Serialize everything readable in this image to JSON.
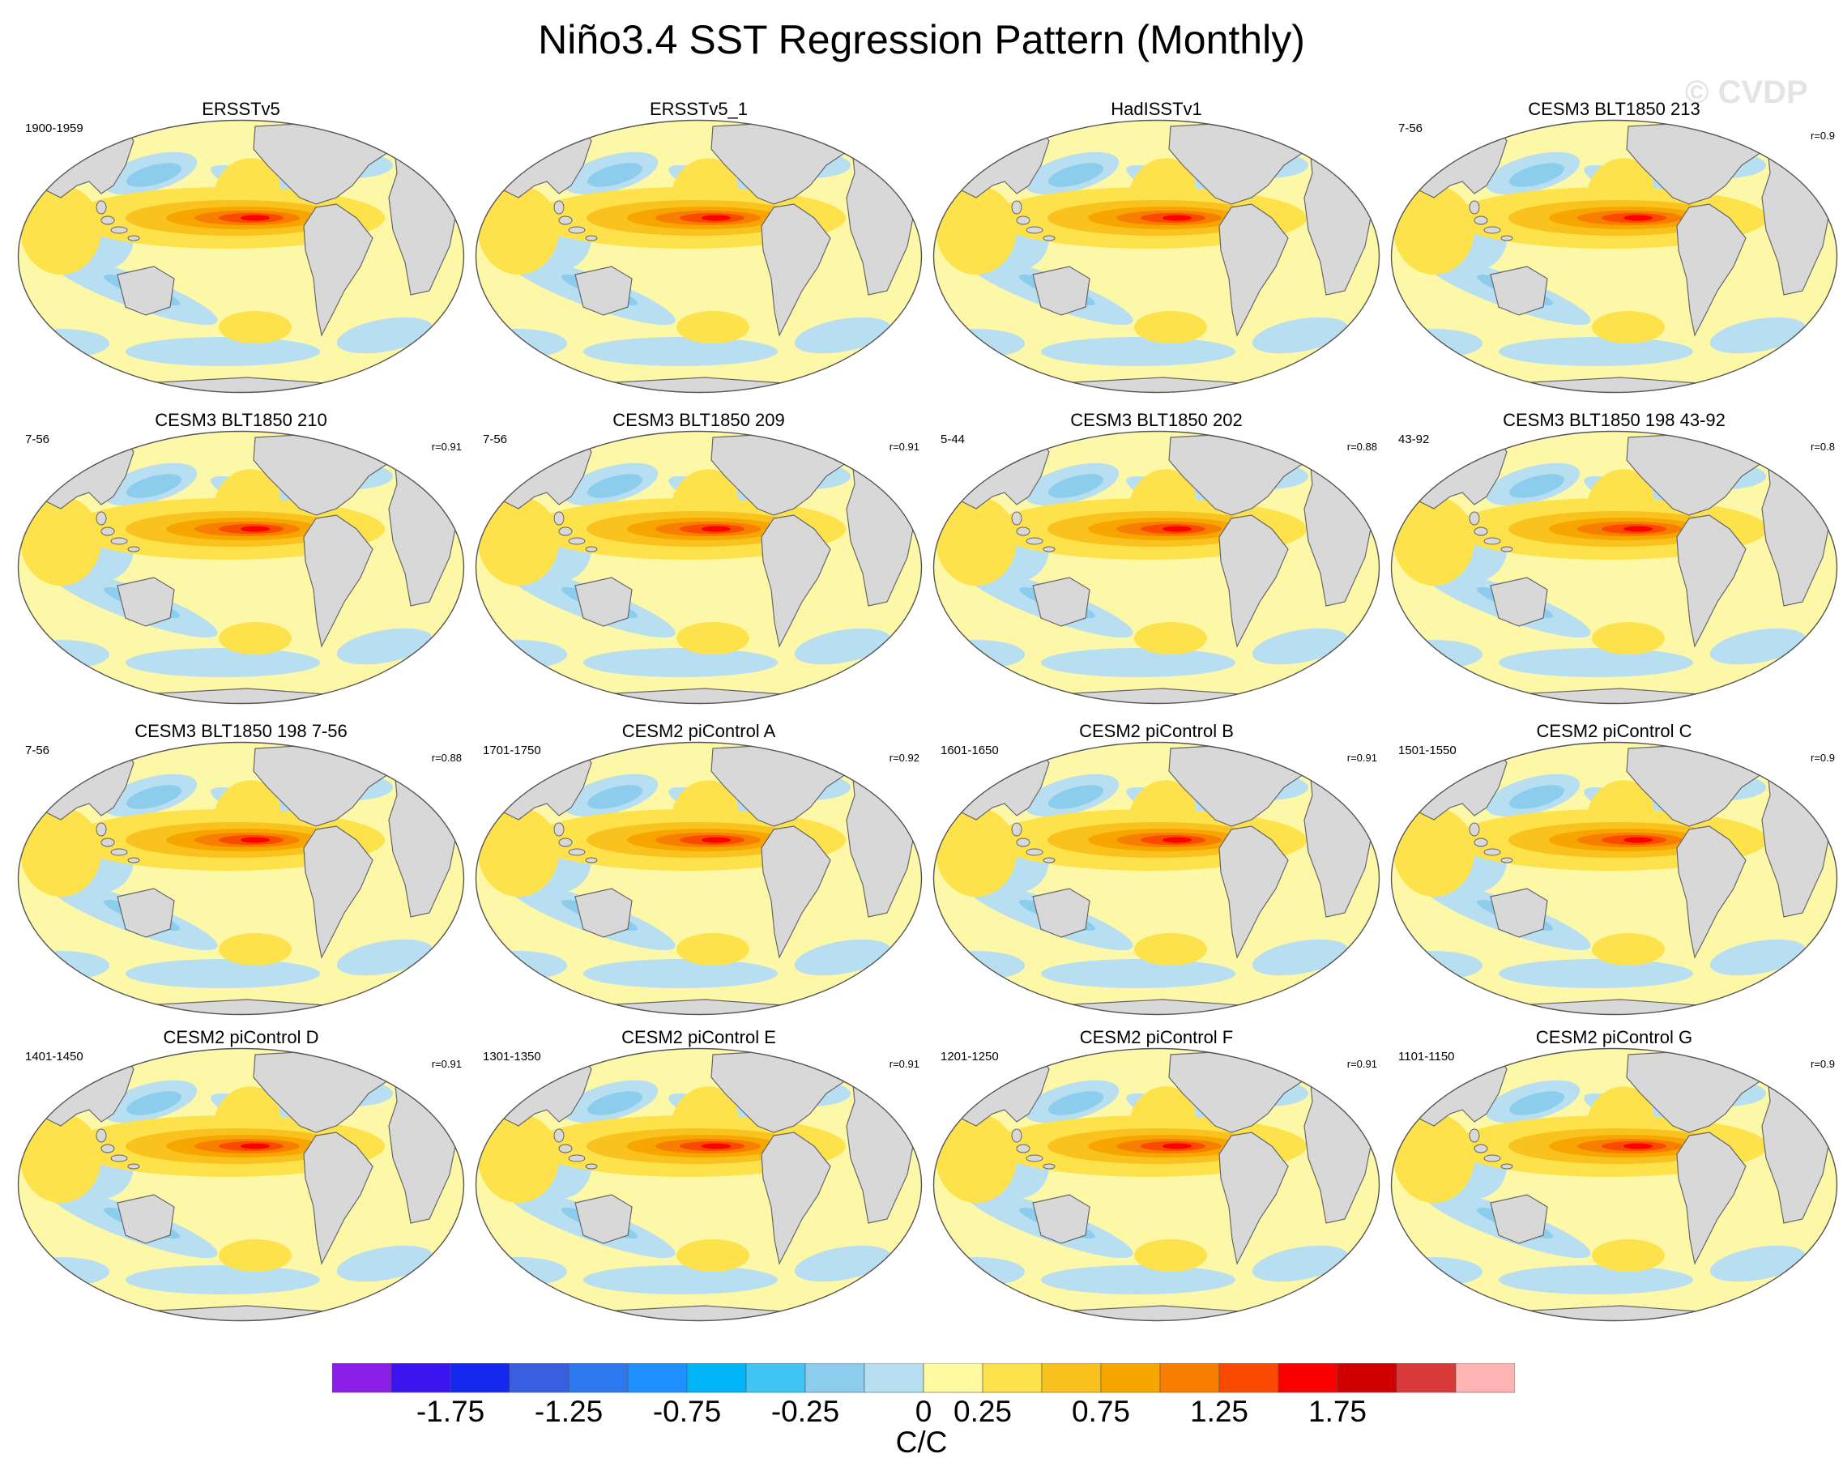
{
  "title": "Niño3.4 SST Regression Pattern (Monthly)",
  "watermark": "© CVDP",
  "panels": [
    {
      "title": "ERSSTv5",
      "period": "1900-1959",
      "r": ""
    },
    {
      "title": "ERSSTv5_1",
      "period": "",
      "r": ""
    },
    {
      "title": "HadISSTv1",
      "period": "",
      "r": ""
    },
    {
      "title": "CESM3 BLT1850 213",
      "period": "7-56",
      "r": "r=0.9"
    },
    {
      "title": "CESM3 BLT1850 210",
      "period": "7-56",
      "r": "r=0.91"
    },
    {
      "title": "CESM3 BLT1850 209",
      "period": "7-56",
      "r": "r=0.91"
    },
    {
      "title": "CESM3 BLT1850 202",
      "period": "5-44",
      "r": "r=0.88"
    },
    {
      "title": "CESM3 BLT1850 198 43-92",
      "period": "43-92",
      "r": "r=0.8"
    },
    {
      "title": "CESM3 BLT1850 198 7-56",
      "period": "7-56",
      "r": "r=0.88"
    },
    {
      "title": "CESM2 piControl A",
      "period": "1701-1750",
      "r": "r=0.92"
    },
    {
      "title": "CESM2 piControl B",
      "period": "1601-1650",
      "r": "r=0.91"
    },
    {
      "title": "CESM2 piControl C",
      "period": "1501-1550",
      "r": "r=0.9"
    },
    {
      "title": "CESM2 piControl D",
      "period": "1401-1450",
      "r": "r=0.91"
    },
    {
      "title": "CESM2 piControl E",
      "period": "1301-1350",
      "r": "r=0.91"
    },
    {
      "title": "CESM2 piControl F",
      "period": "1201-1250",
      "r": "r=0.91"
    },
    {
      "title": "CESM2 piControl G",
      "period": "1101-1150",
      "r": "r=0.9"
    }
  ],
  "colorbar": {
    "colors": [
      "#8a1ee6",
      "#3c14f0",
      "#1428f0",
      "#3a5ee0",
      "#2c78ee",
      "#1e90ff",
      "#00b4f8",
      "#40c4f4",
      "#8ccdee",
      "#b8def2",
      "#fffaa0",
      "#fde24c",
      "#f9c21e",
      "#f7a600",
      "#f87e00",
      "#f94a00",
      "#fb0000",
      "#d00000",
      "#d83a3a",
      "#ffb4b4"
    ],
    "tick_labels": [
      "-1.75",
      "-1.25",
      "-0.75",
      "-0.25",
      "0",
      "0.25",
      "0.75",
      "1.25",
      "1.75"
    ],
    "units": "C/C"
  },
  "palette": {
    "land": "#d8d8d8",
    "ocean_neutral": "#fdf8a8",
    "coast": "#666666"
  }
}
